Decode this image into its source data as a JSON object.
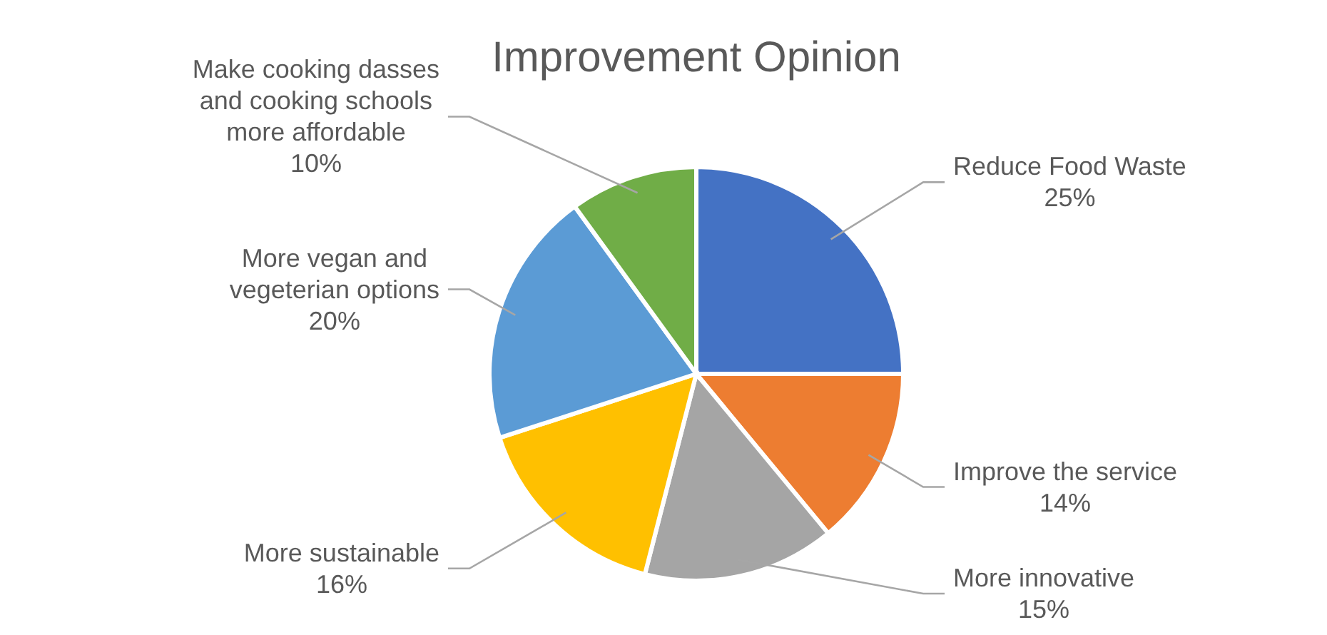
{
  "chart_data": {
    "type": "pie",
    "title": "Improvement Opinion",
    "categories": [
      "Reduce Food Waste",
      "Improve the service",
      "More innovative",
      "More sustainable",
      "More vegan and vegeterian options",
      "Make cooking dasses and cooking schools more affordable"
    ],
    "values": [
      25,
      14,
      15,
      16,
      20,
      10
    ],
    "value_labels": [
      "25%",
      "14%",
      "15%",
      "16%",
      "20%",
      "10%"
    ],
    "colors": [
      "#4472c4",
      "#ed7d31",
      "#a5a5a5",
      "#ffc000",
      "#5b9bd5",
      "#70ad47"
    ]
  }
}
